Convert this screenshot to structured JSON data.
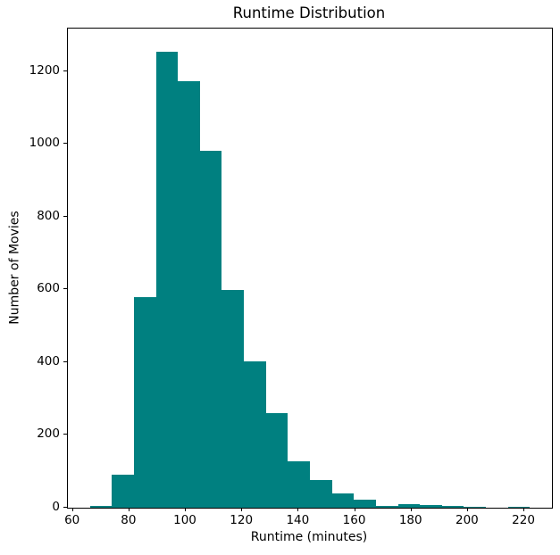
{
  "chart_data": {
    "type": "bar",
    "subtype": "histogram",
    "title": "Runtime Distribution",
    "xlabel": "Runtime (minutes)",
    "ylabel": "Number of Movies",
    "bar_color": "#008080",
    "text_color": "#000000",
    "grid": false,
    "legend": null,
    "bin_edges": [
      66,
      73.8,
      81.6,
      89.4,
      97.2,
      105,
      112.8,
      120.6,
      128.4,
      136.2,
      144,
      151.8,
      159.6,
      167.4,
      175.2,
      183,
      190.8,
      198.6,
      206.4,
      214.2,
      222
    ],
    "counts": [
      6,
      90,
      578,
      1255,
      1173,
      981,
      598,
      402,
      260,
      127,
      77,
      40,
      23,
      6,
      11,
      8,
      5,
      3,
      0,
      3
    ],
    "xlim": [
      58.2,
      229.8
    ],
    "ylim": [
      0,
      1317.75
    ],
    "xticks": [
      60,
      80,
      100,
      120,
      140,
      160,
      180,
      200,
      220
    ],
    "yticks": [
      0,
      200,
      400,
      600,
      800,
      1000,
      1200
    ]
  }
}
